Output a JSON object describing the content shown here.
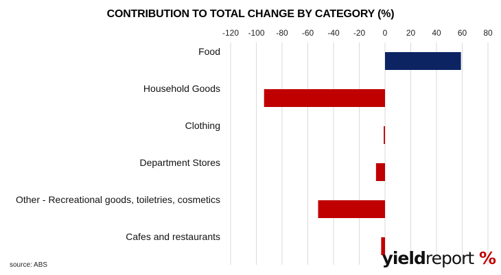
{
  "chart_data": {
    "type": "bar",
    "orientation": "horizontal",
    "title": "CONTRIBUTION TO TOTAL CHANGE BY CATEGORY (%)",
    "categories": [
      "Food",
      "Household Goods",
      "Clothing",
      "Department Stores",
      "Other - Recreational goods, toiletries, cosmetics",
      "Cafes and restaurants"
    ],
    "values": [
      59,
      -94,
      -1,
      -7,
      -52,
      -3
    ],
    "xlim": [
      -120,
      80
    ],
    "xticks": [
      -120,
      -100,
      -80,
      -60,
      -40,
      -20,
      0,
      20,
      40,
      60,
      80
    ],
    "xaxis_position": "top",
    "grid": true,
    "colors": {
      "positive": "#0d2463",
      "negative": "#c00000"
    }
  },
  "source": "source: ABS",
  "logo": {
    "word1": "yield",
    "word2": "report",
    "symbol": "%"
  }
}
